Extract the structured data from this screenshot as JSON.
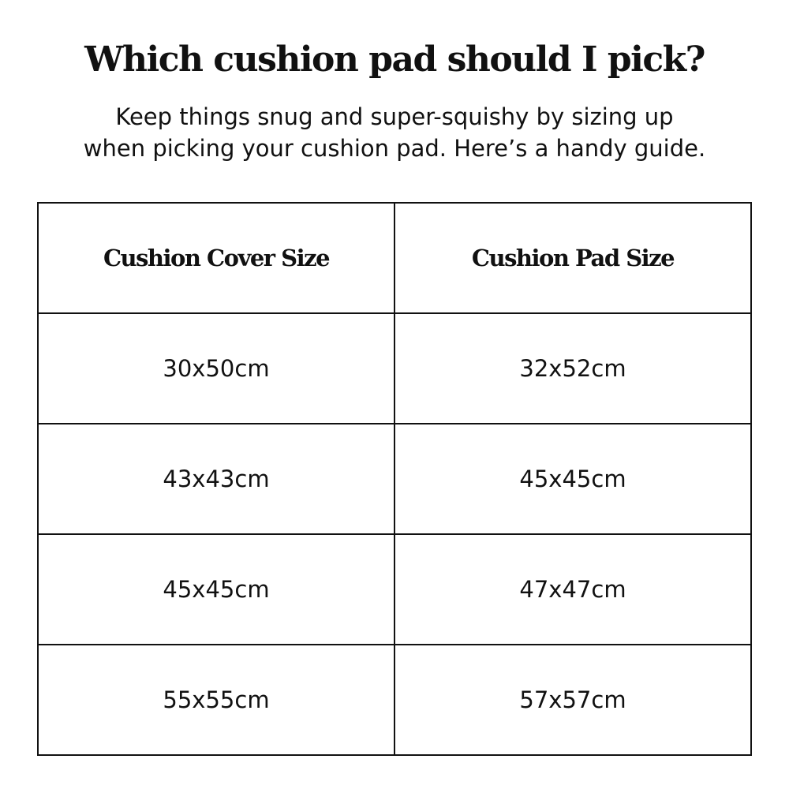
{
  "title": "Which cushion pad should I pick?",
  "subtitle": {
    "line1": "Keep things snug and super-squishy by sizing up",
    "line2": "when picking your cushion pad. Here’s a handy guide."
  },
  "table": {
    "headers": [
      "Cushion Cover Size",
      "Cushion Pad Size"
    ],
    "rows": [
      [
        "30x50cm",
        "32x52cm"
      ],
      [
        "43x43cm",
        "45x45cm"
      ],
      [
        "45x45cm",
        "47x47cm"
      ],
      [
        "55x55cm",
        "57x57cm"
      ]
    ]
  }
}
